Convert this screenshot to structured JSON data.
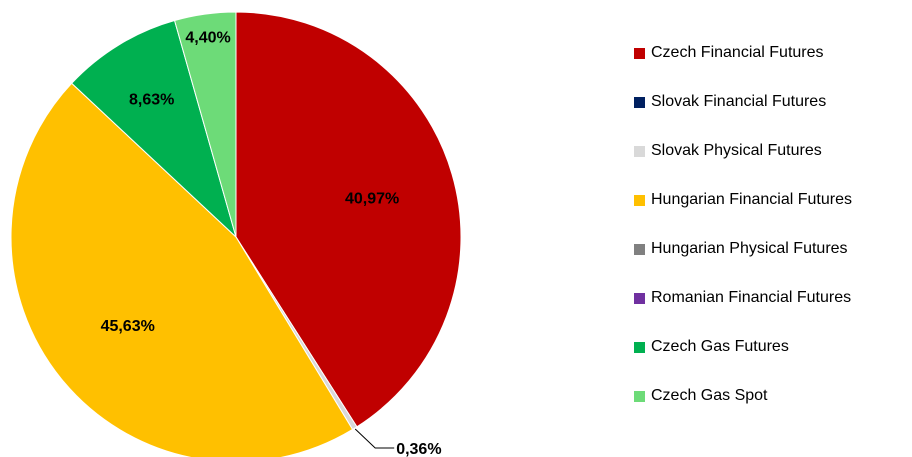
{
  "chart_data": {
    "type": "pie",
    "title": "",
    "slices": [
      {
        "name": "Czech Financial Futures",
        "value": 40.97,
        "label": "40,97%",
        "color": "#C00000"
      },
      {
        "name": "Slovak Financial Futures",
        "value": 0.0,
        "label": "",
        "color": "#002060"
      },
      {
        "name": "Slovak Physical Futures",
        "value": 0.36,
        "label": "0,36%",
        "color": "#D9D9D9"
      },
      {
        "name": "Hungarian Financial Futures",
        "value": 45.63,
        "label": "45,63%",
        "color": "#FFC000"
      },
      {
        "name": "Hungarian Physical Futures",
        "value": 0.0,
        "label": "",
        "color": "#808080"
      },
      {
        "name": "Romanian Financial Futures",
        "value": 0.0,
        "label": "",
        "color": "#7030A0"
      },
      {
        "name": "Czech Gas Futures",
        "value": 8.63,
        "label": "8,63%",
        "color": "#00B050"
      },
      {
        "name": "Czech Gas Spot",
        "value": 4.4,
        "label": "4,40%",
        "color": "#6DDB78"
      }
    ],
    "legend_position": "right"
  }
}
